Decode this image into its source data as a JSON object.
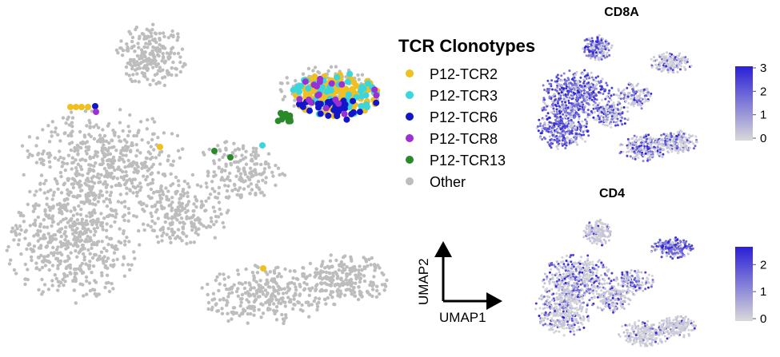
{
  "chart_data": [
    {
      "type": "scatter",
      "title": "",
      "xlabel": "UMAP1",
      "ylabel": "UMAP2",
      "legend": {
        "title": "TCR Clonotypes",
        "placement": "right",
        "entries": [
          {
            "name": "P12-TCR2",
            "color": "#f0c020"
          },
          {
            "name": "P12-TCR3",
            "color": "#3ad6dc"
          },
          {
            "name": "P12-TCR6",
            "color": "#1414c8"
          },
          {
            "name": "P12-TCR8",
            "color": "#9a30d6"
          },
          {
            "name": "P12-TCR13",
            "color": "#2a8a2a"
          },
          {
            "name": "Other",
            "color": "#bdbdbd"
          }
        ]
      },
      "grid": false
    },
    {
      "type": "scatter",
      "title": "CD8A",
      "colorbar": {
        "ticks": [
          "3",
          "2",
          "1",
          "0"
        ],
        "range": [
          0,
          3
        ],
        "low_color": "#d9d9d9",
        "high_color": "#2a1fd6"
      }
    },
    {
      "type": "scatter",
      "title": "CD4",
      "colorbar": {
        "ticks": [
          "2",
          "1",
          "0"
        ],
        "range": [
          0,
          2.6
        ],
        "low_color": "#d9d9d9",
        "high_color": "#2a1fd6"
      }
    }
  ]
}
